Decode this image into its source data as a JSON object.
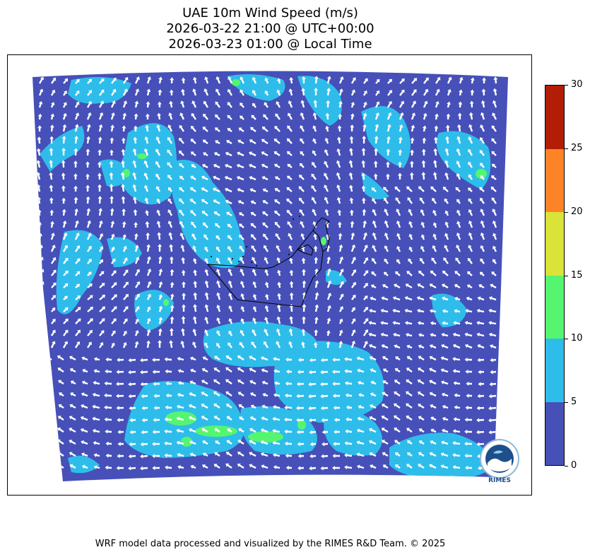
{
  "title": {
    "line1": "UAE 10m Wind Speed (m/s)",
    "line2": "2026-03-22 21:00 @ UTC+00:00",
    "line3": "2026-03-23 01:00 @ Local Time"
  },
  "colorbar": {
    "ticks": [
      "0",
      "5",
      "10",
      "15",
      "20",
      "25",
      "30"
    ],
    "bins": [
      {
        "min": 0,
        "max": 5,
        "color": "#4650b8"
      },
      {
        "min": 5,
        "max": 10,
        "color": "#2ebdea"
      },
      {
        "min": 10,
        "max": 15,
        "color": "#56f56f"
      },
      {
        "min": 15,
        "max": 20,
        "color": "#d9e338"
      },
      {
        "min": 20,
        "max": 25,
        "color": "#fd8327"
      },
      {
        "min": 25,
        "max": 30,
        "color": "#b31d05"
      }
    ]
  },
  "colors": {
    "low_wind": "#4650b8",
    "moderate_wind": "#2ebdea",
    "strong_wind": "#56f56f",
    "arrow": "#ffffff",
    "border": "#000000"
  },
  "logo": {
    "text": "RIMES"
  },
  "footer": "WRF model data processed and visualized by the RIMES R&D Team. © 2025"
}
